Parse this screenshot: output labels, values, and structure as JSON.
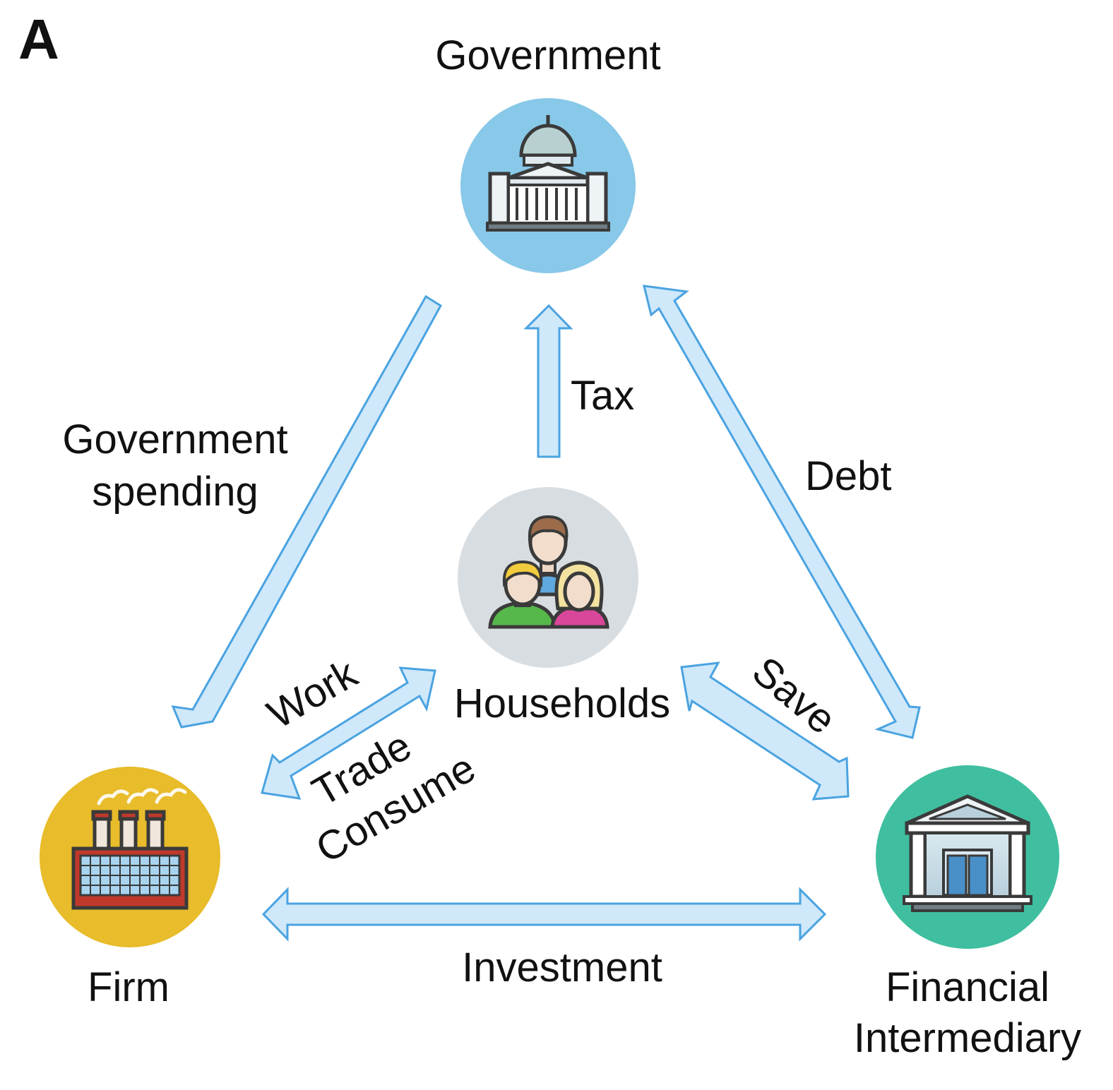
{
  "panel_label": "A",
  "colors": {
    "arrow_fill": "#cfe8fa",
    "arrow_stroke": "#4aa3e0",
    "government_circle": "#88c8e8",
    "households_circle": "#d8dde2",
    "firm_circle": "#e8bc2a",
    "financial_circle": "#3fbf9f"
  },
  "nodes": {
    "government": "Government",
    "households": "Households",
    "firm": "Firm",
    "financial_line1": "Financial",
    "financial_line2": "Intermediary"
  },
  "flows": {
    "tax": "Tax",
    "debt": "Debt",
    "gov_spending_line1": "Government",
    "gov_spending_line2": "spending",
    "work": "Work",
    "trade": "Trade",
    "consume": "Consume",
    "save": "Save",
    "investment": "Investment"
  }
}
